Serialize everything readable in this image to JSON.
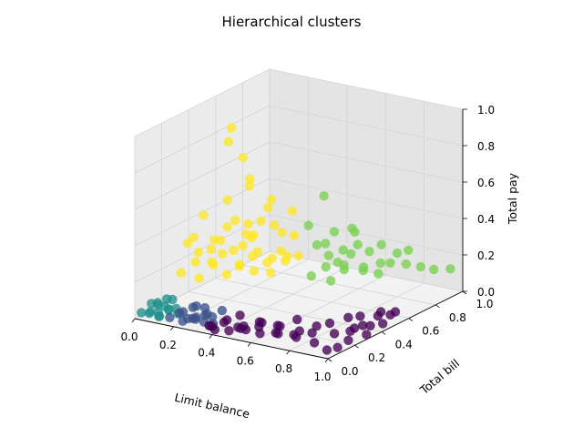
{
  "chart_data": {
    "type": "scatter",
    "projection": "3d",
    "title": "Hierarchical clusters",
    "xlabel": "Limit balance",
    "ylabel": "Total bill",
    "zlabel": "Total pay",
    "xlim": [
      0,
      1
    ],
    "ylim": [
      0,
      1
    ],
    "zlim": [
      0,
      1
    ],
    "x_ticks": [
      "0.0",
      "0.2",
      "0.4",
      "0.6",
      "0.8",
      "1.0"
    ],
    "y_ticks": [
      "0.0",
      "0.2",
      "0.4",
      "0.6",
      "0.8",
      "1.0"
    ],
    "z_ticks": [
      "0.0",
      "0.2",
      "0.4",
      "0.6",
      "0.8",
      "1.0"
    ],
    "grid": true,
    "colors": {
      "cluster_0": "#440154",
      "cluster_1": "#3b528b",
      "cluster_2": "#21918c",
      "cluster_3": "#7ad151",
      "cluster_4": "#fde725",
      "pane_left": "#ebebeb",
      "pane_right": "#e4e4e4",
      "pane_floor": "#f2f2f2",
      "grid": "#d4d4d4"
    },
    "series": [
      {
        "cluster": 2,
        "color": "#21918c",
        "points": [
          [
            0.02,
            0.02,
            0.03
          ],
          [
            0.04,
            0.05,
            0.02
          ],
          [
            0.06,
            0.03,
            0.04
          ],
          [
            0.03,
            0.08,
            0.06
          ],
          [
            0.08,
            0.06,
            0.03
          ],
          [
            0.05,
            0.1,
            0.05
          ],
          [
            0.1,
            0.04,
            0.02
          ],
          [
            0.07,
            0.12,
            0.04
          ],
          [
            0.12,
            0.08,
            0.05
          ],
          [
            0.09,
            0.15,
            0.07
          ],
          [
            0.02,
            0.14,
            0.04
          ],
          [
            0.11,
            0.02,
            0.03
          ],
          [
            0.14,
            0.05,
            0.06
          ],
          [
            0.13,
            0.12,
            0.04
          ],
          [
            0.04,
            0.18,
            0.05
          ],
          [
            0.16,
            0.09,
            0.03
          ]
        ]
      },
      {
        "cluster": 1,
        "color": "#3b528b",
        "points": [
          [
            0.16,
            0.03,
            0.03
          ],
          [
            0.19,
            0.06,
            0.05
          ],
          [
            0.22,
            0.04,
            0.02
          ],
          [
            0.18,
            0.1,
            0.04
          ],
          [
            0.25,
            0.07,
            0.03
          ],
          [
            0.21,
            0.13,
            0.06
          ],
          [
            0.28,
            0.05,
            0.04
          ],
          [
            0.24,
            0.11,
            0.02
          ],
          [
            0.3,
            0.09,
            0.05
          ],
          [
            0.27,
            0.15,
            0.03
          ],
          [
            0.33,
            0.04,
            0.04
          ],
          [
            0.2,
            0.17,
            0.05
          ],
          [
            0.31,
            0.13,
            0.03
          ],
          [
            0.35,
            0.08,
            0.02
          ],
          [
            0.26,
            0.02,
            0.05
          ],
          [
            0.23,
            0.19,
            0.04
          ],
          [
            0.34,
            0.16,
            0.06
          ],
          [
            0.37,
            0.03,
            0.03
          ]
        ]
      },
      {
        "cluster": 0,
        "color": "#440154",
        "points": [
          [
            0.38,
            0.03,
            0.03
          ],
          [
            0.42,
            0.06,
            0.05
          ],
          [
            0.46,
            0.04,
            0.02
          ],
          [
            0.4,
            0.11,
            0.04
          ],
          [
            0.5,
            0.07,
            0.03
          ],
          [
            0.44,
            0.15,
            0.06
          ],
          [
            0.54,
            0.05,
            0.04
          ],
          [
            0.48,
            0.12,
            0.02
          ],
          [
            0.58,
            0.09,
            0.05
          ],
          [
            0.52,
            0.18,
            0.03
          ],
          [
            0.62,
            0.04,
            0.04
          ],
          [
            0.56,
            0.14,
            0.05
          ],
          [
            0.66,
            0.1,
            0.03
          ],
          [
            0.6,
            0.2,
            0.02
          ],
          [
            0.7,
            0.06,
            0.05
          ],
          [
            0.64,
            0.16,
            0.04
          ],
          [
            0.74,
            0.12,
            0.03
          ],
          [
            0.68,
            0.23,
            0.06
          ],
          [
            0.78,
            0.08,
            0.04
          ],
          [
            0.72,
            0.19,
            0.02
          ],
          [
            0.82,
            0.14,
            0.05
          ],
          [
            0.76,
            0.26,
            0.03
          ],
          [
            0.86,
            0.1,
            0.02
          ],
          [
            0.8,
            0.3,
            0.04
          ],
          [
            0.88,
            0.22,
            0.03
          ],
          [
            0.84,
            0.38,
            0.05
          ],
          [
            0.9,
            0.34,
            0.02
          ],
          [
            0.92,
            0.28,
            0.03
          ],
          [
            0.86,
            0.44,
            0.04
          ],
          [
            0.94,
            0.4,
            0.02
          ],
          [
            0.91,
            0.5,
            0.03
          ],
          [
            0.95,
            0.33,
            0.05
          ],
          [
            0.97,
            0.45,
            0.02
          ],
          [
            0.89,
            0.55,
            0.03
          ],
          [
            0.93,
            0.6,
            0.02
          ],
          [
            0.96,
            0.52,
            0.04
          ],
          [
            0.98,
            0.18,
            0.03
          ],
          [
            0.99,
            0.3,
            0.02
          ],
          [
            0.52,
            0.02,
            0.06
          ],
          [
            0.96,
            0.05,
            0.02
          ],
          [
            0.98,
            0.1,
            0.02
          ],
          [
            0.35,
            0.05,
            0.02
          ],
          [
            0.4,
            0.02,
            0.02
          ]
        ]
      },
      {
        "cluster": 3,
        "color": "#7ad151",
        "points": [
          [
            0.6,
            0.45,
            0.2
          ],
          [
            0.64,
            0.5,
            0.24
          ],
          [
            0.68,
            0.48,
            0.18
          ],
          [
            0.62,
            0.55,
            0.28
          ],
          [
            0.7,
            0.55,
            0.22
          ],
          [
            0.66,
            0.6,
            0.3
          ],
          [
            0.72,
            0.52,
            0.26
          ],
          [
            0.75,
            0.62,
            0.2
          ],
          [
            0.58,
            0.52,
            0.34
          ],
          [
            0.7,
            0.65,
            0.32
          ],
          [
            0.78,
            0.58,
            0.24
          ],
          [
            0.74,
            0.68,
            0.28
          ],
          [
            0.8,
            0.66,
            0.18
          ],
          [
            0.65,
            0.7,
            0.36
          ],
          [
            0.82,
            0.72,
            0.22
          ],
          [
            0.76,
            0.74,
            0.3
          ],
          [
            0.84,
            0.62,
            0.26
          ],
          [
            0.68,
            0.44,
            0.4
          ],
          [
            0.72,
            0.58,
            0.44
          ],
          [
            0.86,
            0.78,
            0.2
          ],
          [
            0.8,
            0.8,
            0.24
          ],
          [
            0.62,
            0.4,
            0.5
          ],
          [
            0.88,
            0.86,
            0.16
          ],
          [
            0.92,
            0.9,
            0.14
          ],
          [
            0.95,
            0.98,
            0.12
          ],
          [
            0.6,
            0.62,
            0.38
          ],
          [
            0.9,
            0.74,
            0.3
          ],
          [
            0.7,
            0.4,
            0.68
          ],
          [
            0.77,
            0.5,
            0.34
          ],
          [
            0.73,
            0.46,
            0.3
          ]
        ]
      },
      {
        "cluster": 4,
        "color": "#fde725",
        "points": [
          [
            0.1,
            0.2,
            0.2
          ],
          [
            0.14,
            0.25,
            0.25
          ],
          [
            0.18,
            0.22,
            0.18
          ],
          [
            0.12,
            0.3,
            0.28
          ],
          [
            0.2,
            0.28,
            0.32
          ],
          [
            0.16,
            0.34,
            0.22
          ],
          [
            0.24,
            0.24,
            0.26
          ],
          [
            0.22,
            0.32,
            0.36
          ],
          [
            0.28,
            0.28,
            0.2
          ],
          [
            0.26,
            0.36,
            0.3
          ],
          [
            0.3,
            0.22,
            0.34
          ],
          [
            0.32,
            0.32,
            0.24
          ],
          [
            0.34,
            0.38,
            0.38
          ],
          [
            0.36,
            0.26,
            0.28
          ],
          [
            0.38,
            0.34,
            0.22
          ],
          [
            0.4,
            0.3,
            0.32
          ],
          [
            0.42,
            0.38,
            0.26
          ],
          [
            0.44,
            0.28,
            0.36
          ],
          [
            0.46,
            0.36,
            0.3
          ],
          [
            0.48,
            0.32,
            0.24
          ],
          [
            0.5,
            0.4,
            0.28
          ],
          [
            0.2,
            0.4,
            0.4
          ],
          [
            0.28,
            0.44,
            0.42
          ],
          [
            0.36,
            0.42,
            0.46
          ],
          [
            0.44,
            0.46,
            0.4
          ],
          [
            0.18,
            0.18,
            0.42
          ],
          [
            0.3,
            0.16,
            0.44
          ],
          [
            0.42,
            0.2,
            0.42
          ],
          [
            0.52,
            0.34,
            0.36
          ],
          [
            0.54,
            0.44,
            0.3
          ],
          [
            0.24,
            0.48,
            0.34
          ],
          [
            0.34,
            0.5,
            0.5
          ],
          [
            0.38,
            0.2,
            0.55
          ],
          [
            0.27,
            0.3,
            0.6
          ],
          [
            0.33,
            0.38,
            0.7
          ],
          [
            0.3,
            0.42,
            0.64
          ],
          [
            0.4,
            0.44,
            0.58
          ],
          [
            0.48,
            0.48,
            0.52
          ],
          [
            0.31,
            0.36,
            0.82
          ],
          [
            0.22,
            0.38,
            0.88
          ],
          [
            0.29,
            0.3,
            1.0
          ],
          [
            0.16,
            0.28,
            0.5
          ],
          [
            0.46,
            0.22,
            0.48
          ],
          [
            0.56,
            0.38,
            0.44
          ],
          [
            0.12,
            0.22,
            0.36
          ],
          [
            0.58,
            0.3,
            0.36
          ],
          [
            0.36,
            0.52,
            0.4
          ]
        ]
      }
    ]
  }
}
